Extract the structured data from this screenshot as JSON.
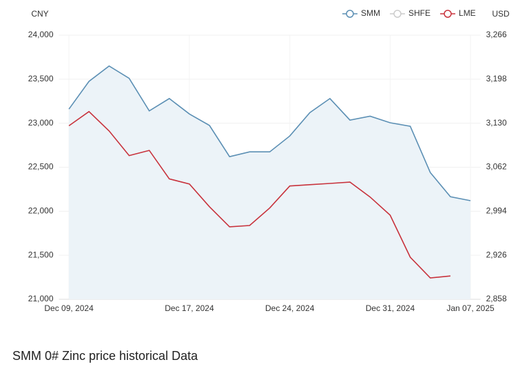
{
  "chart_data": {
    "type": "line",
    "y_axis_label": "CNY",
    "y2_axis_label": "USD",
    "categories": [
      "Dec 09, 2024",
      null,
      null,
      null,
      null,
      null,
      "Dec 17, 2024",
      null,
      null,
      null,
      null,
      "Dec 24, 2024",
      null,
      null,
      null,
      null,
      "Dec 31, 2024",
      null,
      null,
      null,
      "Jan 07, 2025"
    ],
    "series": [
      {
        "name": "SMM",
        "color": "#5b8fb4",
        "fill": "#ecf3f8",
        "values": [
          23160,
          23475,
          23650,
          23510,
          23140,
          23280,
          23105,
          22975,
          22620,
          22675,
          22675,
          22855,
          23120,
          23280,
          23035,
          23080,
          23005,
          22965,
          22440,
          22165,
          22120
        ]
      },
      {
        "name": "SHFE",
        "color": "#cccccc",
        "visible": false,
        "values": [
          null,
          null,
          null,
          null,
          null,
          null,
          null,
          null,
          null,
          null,
          null,
          null,
          null,
          null,
          null,
          null,
          null,
          null,
          null,
          null,
          null
        ]
      },
      {
        "name": "LME",
        "color": "#c8323c",
        "axis": "y2",
        "values": [
          3126,
          3148,
          3118,
          3080,
          3088,
          3044,
          3036,
          3001,
          2970,
          2972,
          2999,
          3033,
          3035,
          3037,
          3039,
          3016,
          2988,
          2923,
          2891,
          2894,
          null
        ]
      }
    ],
    "ylim": [
      21000,
      24000
    ],
    "yticks": [
      {
        "value": 21000,
        "label": "21,000"
      },
      {
        "value": 21500,
        "label": "21,500"
      },
      {
        "value": 22000,
        "label": "22,000"
      },
      {
        "value": 22500,
        "label": "22,500"
      },
      {
        "value": 23000,
        "label": "23,000"
      },
      {
        "value": 23500,
        "label": "23,500"
      },
      {
        "value": 24000,
        "label": "24,000"
      }
    ],
    "y2lim": [
      2858,
      3266
    ],
    "y2ticks": [
      {
        "value": 2858,
        "label": "2,858"
      },
      {
        "value": 2926,
        "label": "2,926"
      },
      {
        "value": 2994,
        "label": "2,994"
      },
      {
        "value": 3062,
        "label": "3,062"
      },
      {
        "value": 3130,
        "label": "3,130"
      },
      {
        "value": 3198,
        "label": "3,198"
      },
      {
        "value": 3266,
        "label": "3,266"
      }
    ],
    "grid": true,
    "legend": "top-right",
    "caption": "SMM 0# Zinc price historical Data"
  }
}
